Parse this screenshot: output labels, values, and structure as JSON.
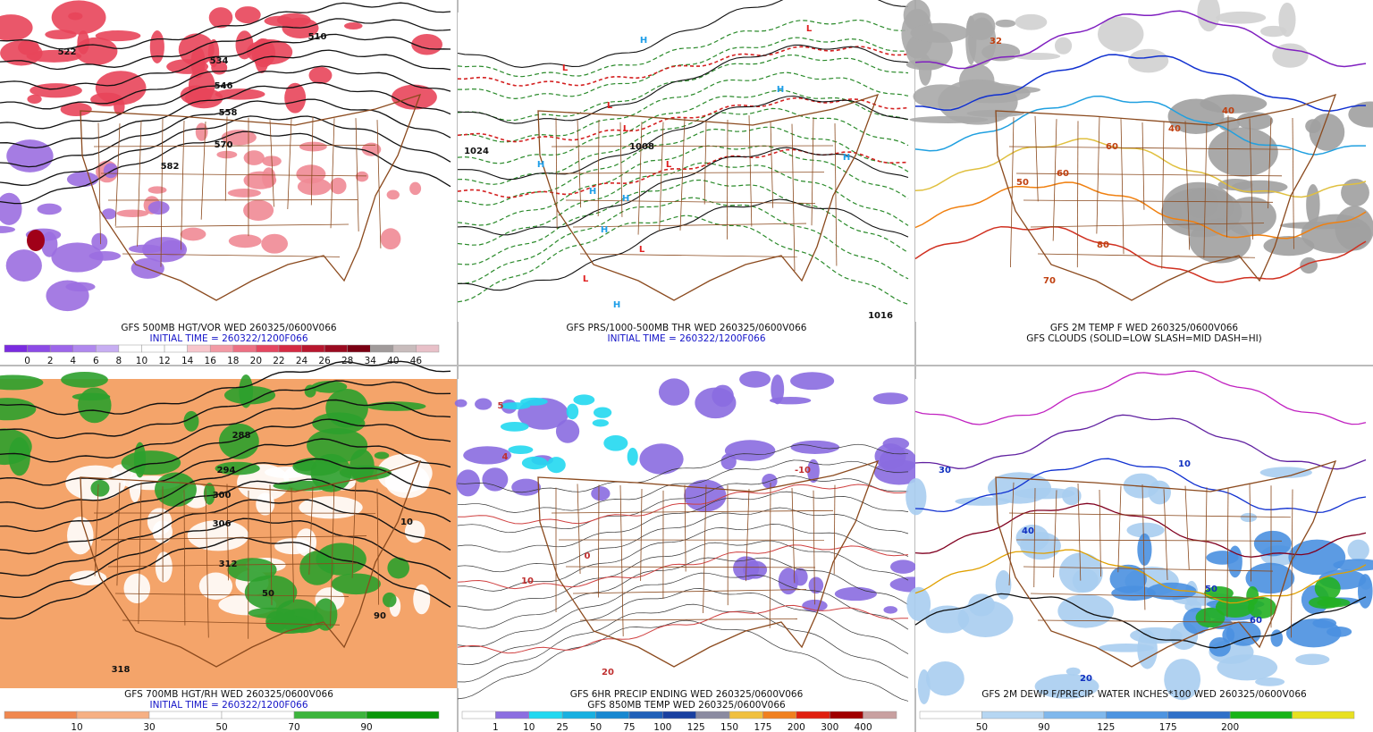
{
  "panels": [
    {
      "captions": [
        "GFS 500MB HGT/VOR WED 260325/0600V066",
        "INITIAL TIME = 260322/1200F066"
      ],
      "colorbar": {
        "labels": [
          0,
          2,
          4,
          6,
          8,
          10,
          12,
          14,
          16,
          18,
          20,
          22,
          24,
          26,
          28,
          34,
          40,
          46
        ],
        "colors": [
          "#7a2be0",
          "#8c4ae6",
          "#9d66ea",
          "#b088ee",
          "#c7aef2",
          "#ffffff",
          "#ffffff",
          "#ffffff",
          "#f7c6cc",
          "#f29aa5",
          "#ec7083",
          "#e44660",
          "#d42a43",
          "#b8162e",
          "#9a0a20",
          "#7a0013",
          "#a09a9a",
          "#c8bcbc",
          "#e8c0c8"
        ]
      },
      "map_labels": [
        "522",
        "510",
        "534",
        "546",
        "558",
        "570",
        "582"
      ]
    },
    {
      "captions": [
        "GFS PRS/1000-500MB THR WED 260325/0600V066",
        "INITIAL TIME = 260322/1200F066"
      ],
      "map_labels": [
        "H",
        "L",
        "L",
        "L",
        "H",
        "H",
        "H",
        "H",
        "L",
        "L",
        "H",
        "H",
        "H",
        "L",
        "L",
        "1024",
        "1016",
        "1008"
      ]
    },
    {
      "captions": [
        "GFS 2M TEMP F WED 260325/0600V066",
        "GFS CLOUDS (SOLID=LOW SLASH=MID DASH=HI)"
      ],
      "map_labels": [
        "32",
        "40",
        "50",
        "60",
        "70",
        "80",
        "40",
        "60"
      ]
    },
    {
      "captions": [
        "GFS 700MB HGT/RH WED 260325/0600V066",
        "INITIAL TIME = 260322/1200F066"
      ],
      "colorbar": {
        "labels": [
          10,
          30,
          50,
          70,
          90
        ],
        "colors": [
          "#f08850",
          "#f6b083",
          "#ffffff",
          "#ffffff",
          "#3cb43c",
          "#0a960a"
        ]
      },
      "map_labels": [
        "288",
        "294",
        "300",
        "306",
        "312",
        "318",
        "10",
        "50",
        "90"
      ]
    },
    {
      "captions": [
        "GFS 6HR PRECIP ENDING WED 260325/0600V066",
        "GFS 850MB TEMP WED 260325/0600V066"
      ],
      "colorbar": {
        "labels": [
          1,
          10,
          25,
          50,
          75,
          100,
          125,
          150,
          175,
          200,
          300,
          400
        ],
        "colors": [
          "#ffffff",
          "#8c6ee0",
          "#22d8f0",
          "#18b0e0",
          "#1888d0",
          "#2060b8",
          "#1a40a0",
          "#8a8aa0",
          "#f0c040",
          "#f08020",
          "#e02010",
          "#a00000",
          "#c8a0a0"
        ]
      },
      "map_labels": [
        "5",
        "4",
        "-10",
        "0",
        "10",
        "20"
      ]
    },
    {
      "captions": [
        "GFS 2M DEWP F/PRECIP. WATER INCHES*100 WED 260325/0600V066"
      ],
      "colorbar": {
        "labels": [
          50,
          90,
          125,
          175,
          200
        ],
        "colors": [
          "#ffffff",
          "#b6d6f2",
          "#80b8ec",
          "#4e94e0",
          "#3070c8",
          "#18b418",
          "#e8e020"
        ]
      },
      "map_labels": [
        "30",
        "40",
        "50",
        "60",
        "20",
        "10"
      ]
    }
  ]
}
